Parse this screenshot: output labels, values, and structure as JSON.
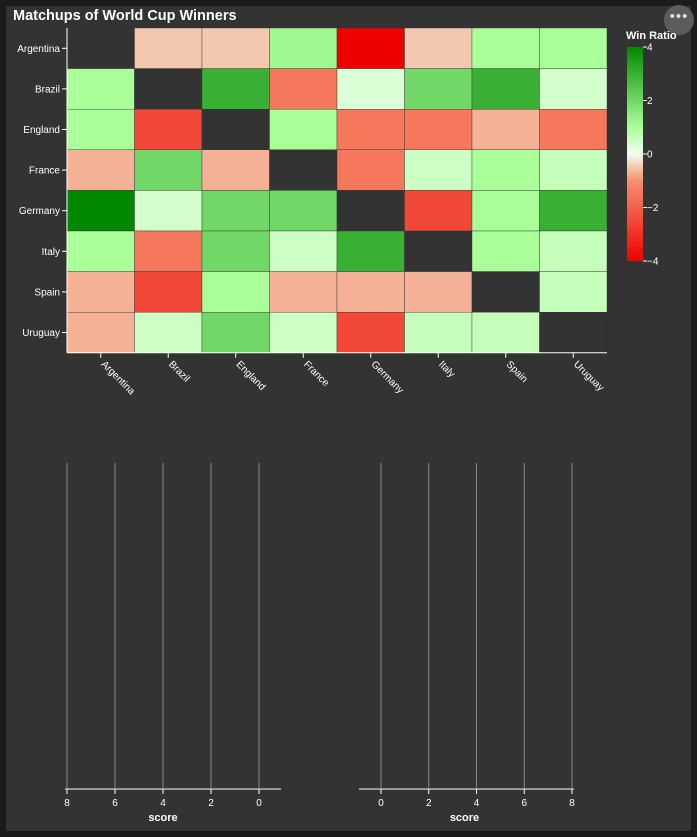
{
  "title": "Matchups of World Cup Winners",
  "menu": {
    "icon": "more-dots-icon",
    "glyph": "•••"
  },
  "colors": {
    "background": "#333333",
    "diagonal_cell": "#333333",
    "axis": "#ffffff",
    "grid": "#888888",
    "scale_negative": "#ee0000",
    "scale_mid_neg": "#f6906e",
    "scale_zero": "#f0fff0",
    "scale_mid_pos": "#aaff99",
    "scale_positive": "#008800"
  },
  "chart_data": [
    {
      "type": "heatmap",
      "title": "Matchups of World Cup Winners",
      "rows": [
        "Argentina",
        "Brazil",
        "England",
        "France",
        "Germany",
        "Italy",
        "Spain",
        "Uruguay"
      ],
      "columns": [
        "Argentina",
        "Brazil",
        "England",
        "France",
        "Germany",
        "Italy",
        "Spain",
        "Uruguay"
      ],
      "values": [
        [
          null,
          -0.5,
          -0.5,
          1.2,
          -4.2,
          -0.5,
          1.0,
          1.0
        ],
        [
          1.0,
          null,
          3.0,
          -1.5,
          0.3,
          2.0,
          3.0,
          0.4
        ],
        [
          1.0,
          -2.5,
          null,
          1.0,
          -1.5,
          -1.5,
          -0.7,
          -1.5
        ],
        [
          -0.7,
          2.0,
          -0.7,
          null,
          -1.5,
          0.5,
          1.0,
          0.6
        ],
        [
          4.2,
          0.4,
          2.0,
          2.0,
          null,
          -2.5,
          1.0,
          3.0
        ],
        [
          1.0,
          -1.5,
          2.0,
          0.5,
          3.0,
          null,
          1.0,
          0.6
        ],
        [
          -0.7,
          -2.5,
          1.0,
          -0.7,
          -0.7,
          -0.7,
          null,
          0.6
        ],
        [
          -0.7,
          0.5,
          2.0,
          0.5,
          -2.5,
          0.6,
          0.6,
          null
        ]
      ],
      "legend": {
        "title": "Win Ratio",
        "ticks": [
          4,
          2,
          0,
          -2,
          -4
        ],
        "tick_labels": [
          "4",
          "2",
          "0",
          "−2",
          "−4"
        ],
        "domain": [
          -4,
          4
        ],
        "position": "right"
      }
    },
    {
      "type": "bar",
      "xlabel": "score",
      "xlim": [
        8,
        0
      ],
      "x_ticks": [
        8,
        6,
        4,
        2,
        0
      ],
      "grid": true,
      "values": []
    },
    {
      "type": "bar",
      "xlabel": "score",
      "xlim": [
        0,
        8
      ],
      "x_ticks": [
        0,
        2,
        4,
        6,
        8
      ],
      "grid": true,
      "values": []
    }
  ]
}
